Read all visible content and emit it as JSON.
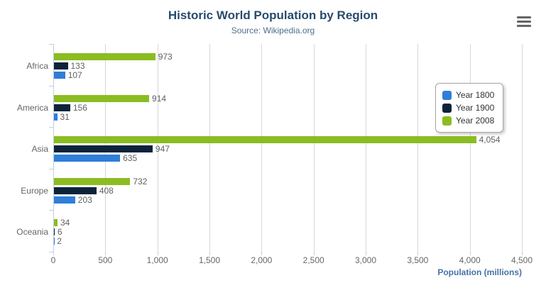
{
  "title": "Historic World Population by Region",
  "subtitle": "Source: Wikipedia.org",
  "context_menu_icon": "hamburger-menu-icon",
  "colors": {
    "title": "#274b6d",
    "subtitle": "#4d6e90",
    "axis_title": "#4572a7",
    "axis_labels": "#666666",
    "value_labels": "#606060",
    "grid": "#d8d8d8",
    "axis_line": "#c0d0e0",
    "year_1800": "#2f7ed8",
    "year_1900": "#0d233a",
    "year_2008": "#8bbc21"
  },
  "chart_data": {
    "type": "bar",
    "orientation": "horizontal",
    "title": "Historic World Population by Region",
    "subtitle": "Source: Wikipedia.org",
    "categories": [
      "Africa",
      "America",
      "Asia",
      "Europe",
      "Oceania"
    ],
    "series": [
      {
        "name": "Year 1800",
        "color": "#2f7ed8",
        "values": [
          107,
          31,
          635,
          203,
          2
        ]
      },
      {
        "name": "Year 1900",
        "color": "#0d233a",
        "values": [
          133,
          156,
          947,
          408,
          6
        ]
      },
      {
        "name": "Year 2008",
        "color": "#8bbc21",
        "values": [
          973,
          914,
          4054,
          732,
          34
        ]
      }
    ],
    "series_draw_order_top_to_bottom": [
      2,
      1,
      0
    ],
    "xlabel": "Population (millions)",
    "ylabel": "",
    "xlim": [
      0,
      4500
    ],
    "x_tick_interval": 500,
    "x_tick_labels": [
      "0",
      "500",
      "1,000",
      "1,500",
      "2,000",
      "2,500",
      "3,000",
      "3,500",
      "4,000",
      "4,500"
    ],
    "grid": true,
    "data_labels": true,
    "legend_position": "right",
    "legend_entries": [
      "Year 1800",
      "Year 1900",
      "Year 2008"
    ]
  }
}
